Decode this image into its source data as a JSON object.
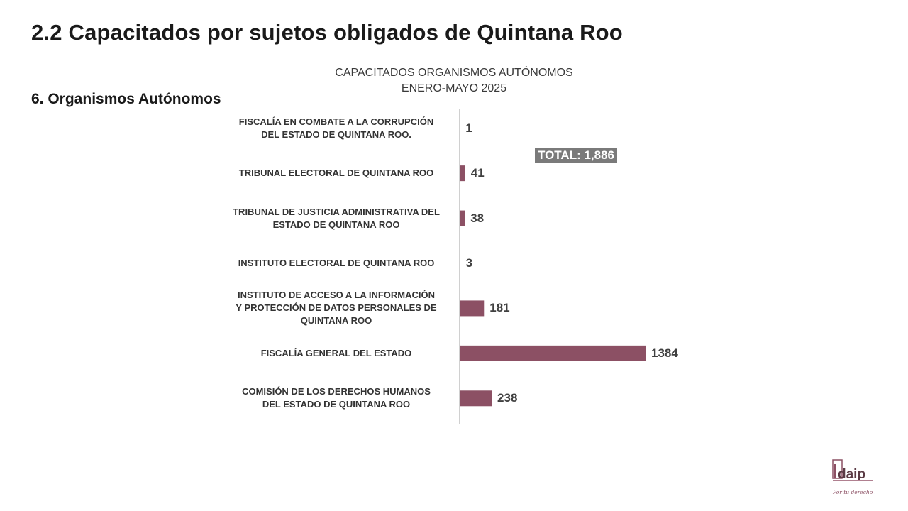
{
  "page": {
    "title": "2.2 Capacitados por sujetos obligados de Quintana Roo",
    "section": "6. Organismos Autónomos"
  },
  "chart_data": {
    "type": "bar",
    "orientation": "horizontal",
    "title": "CAPACITADOS ORGANISMOS AUTÓNOMOS",
    "subtitle": "ENERO-MAYO 2025",
    "categories": [
      "FISCALÍA EN COMBATE A LA CORRUPCIÓN DEL ESTADO DE QUINTANA ROO.",
      "TRIBUNAL ELECTORAL DE QUINTANA ROO",
      "TRIBUNAL DE JUSTICIA ADMINISTRATIVA DEL ESTADO DE QUINTANA ROO",
      "INSTITUTO ELECTORAL DE QUINTANA ROO",
      "INSTITUTO DE ACCESO A LA INFORMACIÓN Y PROTECCIÓN DE DATOS PERSONALES DE QUINTANA ROO",
      "FISCALÍA GENERAL DEL ESTADO",
      "COMISIÓN DE LOS DERECHOS HUMANOS DEL ESTADO DE QUINTANA ROO"
    ],
    "values": [
      1,
      41,
      38,
      3,
      181,
      1384,
      238
    ],
    "value_labels": [
      "1",
      "41",
      "38",
      "3",
      "181",
      "1384",
      "238"
    ],
    "annotation": "TOTAL: 1,886",
    "bar_color": "#8c5064",
    "xlim": [
      0,
      1400
    ],
    "grid": false,
    "legend": "none"
  },
  "logo": {
    "text": "idaip",
    "tagline": "Por tu derecho a saber"
  }
}
